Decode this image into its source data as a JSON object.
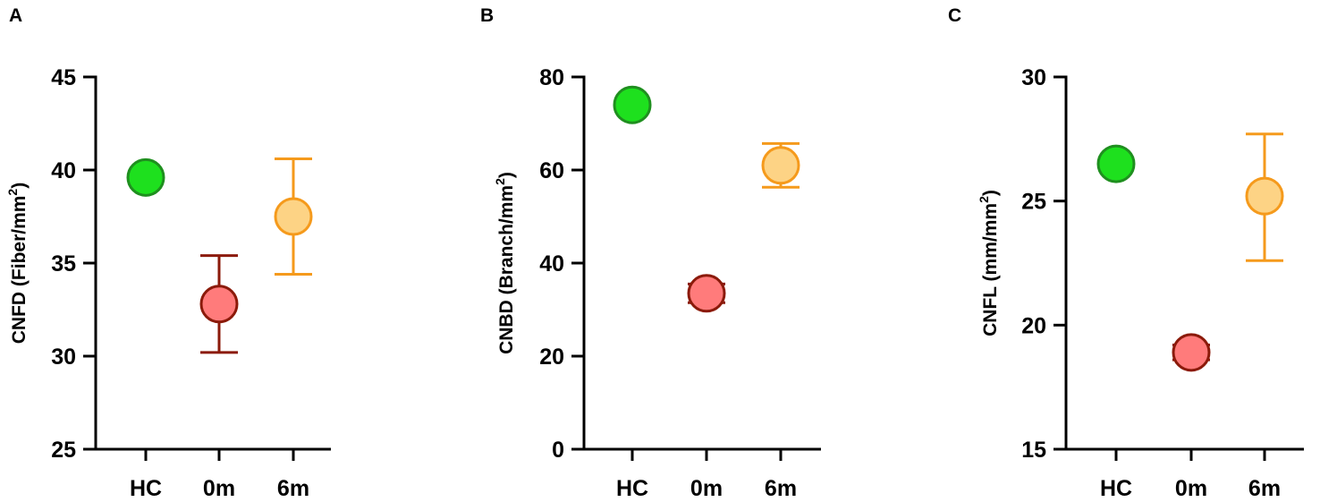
{
  "chart_data": [
    {
      "type": "scatter",
      "panel": "A",
      "ylabel": "CNFD (Fiber/mm",
      "ylabel_sup": "2",
      "ylabel_end": ")",
      "ylim": [
        25,
        45
      ],
      "yticks": [
        "25",
        "30",
        "35",
        "40",
        "45"
      ],
      "categories": [
        "HC",
        "0m",
        "6m"
      ],
      "points": [
        {
          "category": "HC",
          "mean": 39.6,
          "err_low": 39.6,
          "err_high": 39.6,
          "fill": "#1ee01e",
          "stroke": "#1f8f1f"
        },
        {
          "category": "0m",
          "mean": 32.8,
          "err_low": 30.2,
          "err_high": 35.4,
          "fill": "#ff7b7b",
          "stroke": "#8b1a0a"
        },
        {
          "category": "6m",
          "mean": 37.5,
          "err_low": 34.4,
          "err_high": 40.6,
          "fill": "#fdd385",
          "stroke": "#f59a1c"
        }
      ]
    },
    {
      "type": "scatter",
      "panel": "B",
      "ylabel": "CNBD (Branch/mm",
      "ylabel_sup": "2",
      "ylabel_end": ")",
      "ylim": [
        0,
        80
      ],
      "yticks": [
        "0",
        "20",
        "40",
        "60",
        "80"
      ],
      "categories": [
        "HC",
        "0m",
        "6m"
      ],
      "points": [
        {
          "category": "HC",
          "mean": 74,
          "err_low": 74,
          "err_high": 74,
          "fill": "#1ee01e",
          "stroke": "#1f8f1f"
        },
        {
          "category": "0m",
          "mean": 33.5,
          "err_low": 31.5,
          "err_high": 35.5,
          "fill": "#ff7b7b",
          "stroke": "#8b1a0a"
        },
        {
          "category": "6m",
          "mean": 61,
          "err_low": 56.3,
          "err_high": 65.7,
          "fill": "#fdd385",
          "stroke": "#f59a1c"
        }
      ]
    },
    {
      "type": "scatter",
      "panel": "C",
      "ylabel": "CNFL (mm/mm",
      "ylabel_sup": "2",
      "ylabel_end": ")",
      "ylim": [
        15,
        30
      ],
      "yticks": [
        "15",
        "20",
        "25",
        "30"
      ],
      "categories": [
        "HC",
        "0m",
        "6m"
      ],
      "points": [
        {
          "category": "HC",
          "mean": 26.5,
          "err_low": 26.5,
          "err_high": 26.5,
          "fill": "#1ee01e",
          "stroke": "#1f8f1f"
        },
        {
          "category": "0m",
          "mean": 18.9,
          "err_low": 18.6,
          "err_high": 19.2,
          "fill": "#ff7b7b",
          "stroke": "#8b1a0a"
        },
        {
          "category": "6m",
          "mean": 25.2,
          "err_low": 22.6,
          "err_high": 27.7,
          "fill": "#fdd385",
          "stroke": "#f59a1c"
        }
      ]
    }
  ]
}
